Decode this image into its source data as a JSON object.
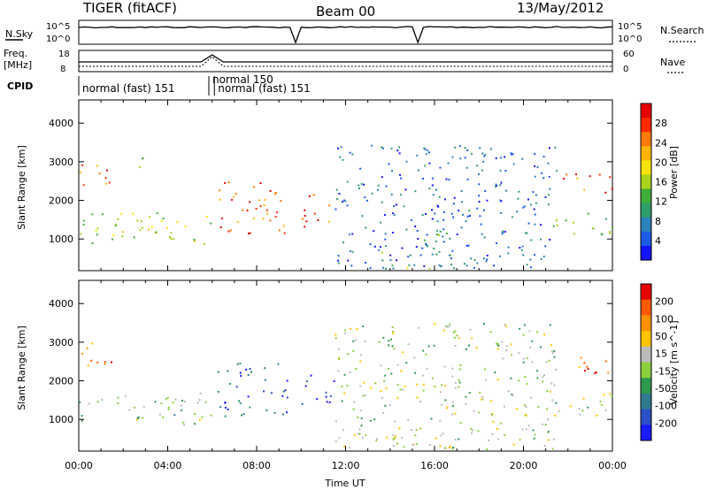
{
  "header": {
    "radar": "TIGER (fitACF)",
    "beam": "Beam 00",
    "date": "13/May/2012"
  },
  "summary_panels": {
    "nsky_label": "N.Sky",
    "nsearch_label": "N.Search",
    "nsky_ticks": [
      "10^5",
      "10^0"
    ],
    "nsearch_ticks": [
      "10^5",
      "10^0"
    ],
    "freq_label_line1": "Freq.",
    "freq_label_line2": "[MHz]",
    "freq_ticks": [
      "18",
      "8"
    ],
    "nave_label": "Nave",
    "nave_ticks": [
      "60",
      "0"
    ],
    "cpid_label": "CPID",
    "cpid_segments": [
      {
        "start_hour": 0.0,
        "end_hour": 5.85,
        "text": "normal (fast) 151"
      },
      {
        "start_hour": 5.85,
        "end_hour": 6.1,
        "text": "normal 150"
      },
      {
        "start_hour": 6.1,
        "end_hour": 24.0,
        "text": "normal (fast) 151"
      }
    ]
  },
  "chart_data": [
    {
      "type": "heatmap",
      "quantity": "Power",
      "xlabel": "",
      "ylabel": "Slant Range [km]",
      "xlim_hours": [
        0,
        24
      ],
      "ylim_km": [
        180,
        4600
      ],
      "x_tick_labels": [
        "00:00",
        "04:00",
        "08:00",
        "12:00",
        "16:00",
        "20:00",
        "00:00"
      ],
      "y_ticks": [
        1000,
        2000,
        3000,
        4000
      ],
      "colorbar": {
        "label": "Power [dB]",
        "ticks": [
          "4",
          "8",
          "12",
          "16",
          "20",
          "24",
          "28"
        ],
        "colors": [
          "#1414ff",
          "#1c5ce6",
          "#2a82b8",
          "#2f9e6a",
          "#3fae3a",
          "#a8d21c",
          "#f7e40c",
          "#ffb40a",
          "#ff7a06",
          "#ff2a00",
          "#e60000"
        ]
      },
      "regions": [
        {
          "t0": 0.0,
          "t1": 6.0,
          "r0": 850,
          "r1": 1350,
          "level": 0.55
        },
        {
          "t0": 0.0,
          "t1": 6.0,
          "r0": 1350,
          "r1": 1700,
          "level": 0.45
        },
        {
          "t0": 0.0,
          "t1": 1.5,
          "r0": 2250,
          "r1": 3000,
          "level": 0.8
        },
        {
          "t0": 2.0,
          "t1": 3.0,
          "r0": 2800,
          "r1": 3200,
          "level": 0.4
        },
        {
          "t0": 6.2,
          "t1": 9.5,
          "r0": 1100,
          "r1": 2500,
          "level": 0.85
        },
        {
          "t0": 10.0,
          "t1": 11.5,
          "r0": 1300,
          "r1": 2200,
          "level": 0.9
        },
        {
          "t0": 11.5,
          "t1": 21.5,
          "r0": 250,
          "r1": 3500,
          "level": 0.15
        },
        {
          "t0": 13.5,
          "t1": 17.0,
          "r0": 250,
          "r1": 700,
          "level": 0.4
        },
        {
          "t0": 15.5,
          "t1": 17.0,
          "r0": 900,
          "r1": 1400,
          "level": 0.45
        },
        {
          "t0": 21.7,
          "t1": 24.0,
          "r0": 2200,
          "r1": 2700,
          "level": 0.85
        },
        {
          "t0": 21.0,
          "t1": 24.0,
          "r0": 1100,
          "r1": 1700,
          "level": 0.5
        }
      ]
    },
    {
      "type": "heatmap",
      "quantity": "Velocity",
      "xlabel": "Time UT",
      "ylabel": "Slant Range [km]",
      "xlim_hours": [
        0,
        24
      ],
      "ylim_km": [
        180,
        4600
      ],
      "x_tick_labels": [
        "00:00",
        "04:00",
        "08:00",
        "12:00",
        "16:00",
        "20:00",
        "00:00"
      ],
      "y_ticks": [
        1000,
        2000,
        3000,
        4000
      ],
      "colorbar": {
        "label": "Velocity [m s^-1]",
        "ticks": [
          "200",
          "100",
          "50",
          "15",
          "-15",
          "-50",
          "-100",
          "-200"
        ],
        "colors": [
          "#1a1aff",
          "#2a4fc8",
          "#2f7a90",
          "#2e9a4e",
          "#8ccf3c",
          "#bbbbbb",
          "#ffc400",
          "#ff9000",
          "#ff5a00",
          "#e60000"
        ]
      },
      "regions": [
        {
          "t0": 0.0,
          "t1": 6.0,
          "r0": 850,
          "r1": 1700,
          "level": 0.45
        },
        {
          "t0": 0.0,
          "t1": 1.5,
          "r0": 2250,
          "r1": 3000,
          "level": 0.8
        },
        {
          "t0": 6.2,
          "t1": 9.5,
          "r0": 1100,
          "r1": 2500,
          "level": 0.15
        },
        {
          "t0": 10.0,
          "t1": 11.5,
          "r0": 1300,
          "r1": 2200,
          "level": 0.1
        },
        {
          "t0": 11.5,
          "t1": 21.5,
          "r0": 250,
          "r1": 3500,
          "level": 0.5
        },
        {
          "t0": 13.5,
          "t1": 17.0,
          "r0": 250,
          "r1": 700,
          "level": 0.55
        },
        {
          "t0": 21.7,
          "t1": 24.0,
          "r0": 2200,
          "r1": 2700,
          "level": 0.85
        },
        {
          "t0": 21.0,
          "t1": 24.0,
          "r0": 1100,
          "r1": 1700,
          "level": 0.5
        }
      ]
    }
  ]
}
